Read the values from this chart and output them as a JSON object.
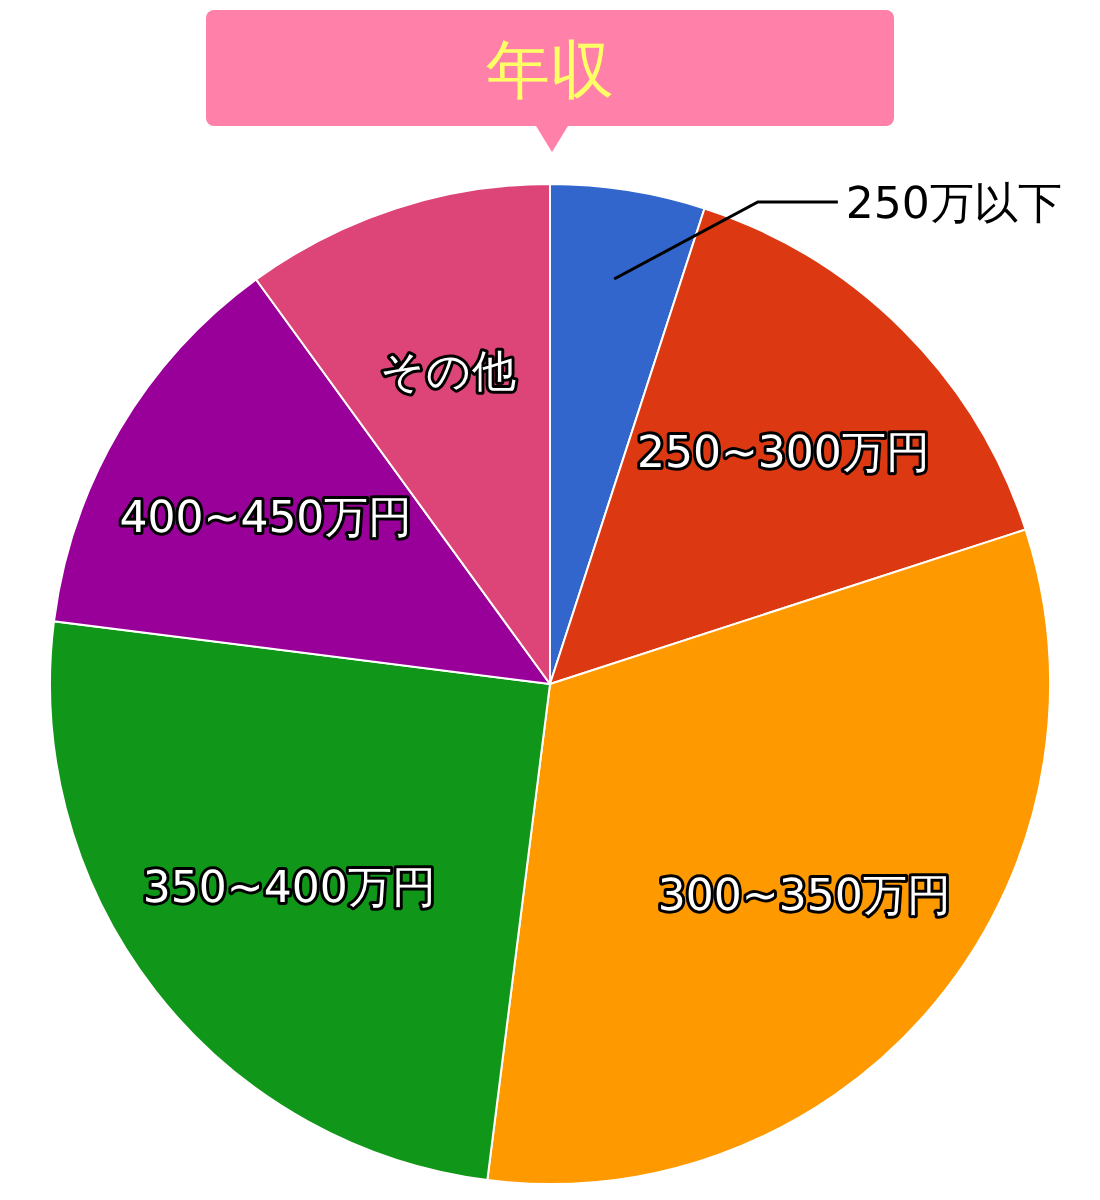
{
  "chart_data": {
    "type": "pie",
    "title": "年収",
    "categories": [
      "250万以下",
      "250~300万円",
      "300~350万円",
      "350~400万円",
      "400~450万円",
      "その他"
    ],
    "values": [
      5,
      15,
      32,
      25,
      13,
      10
    ],
    "colors": [
      "#3366cc",
      "#dc3912",
      "#ff9900",
      "#109618",
      "#990099",
      "#dd4477"
    ]
  }
}
